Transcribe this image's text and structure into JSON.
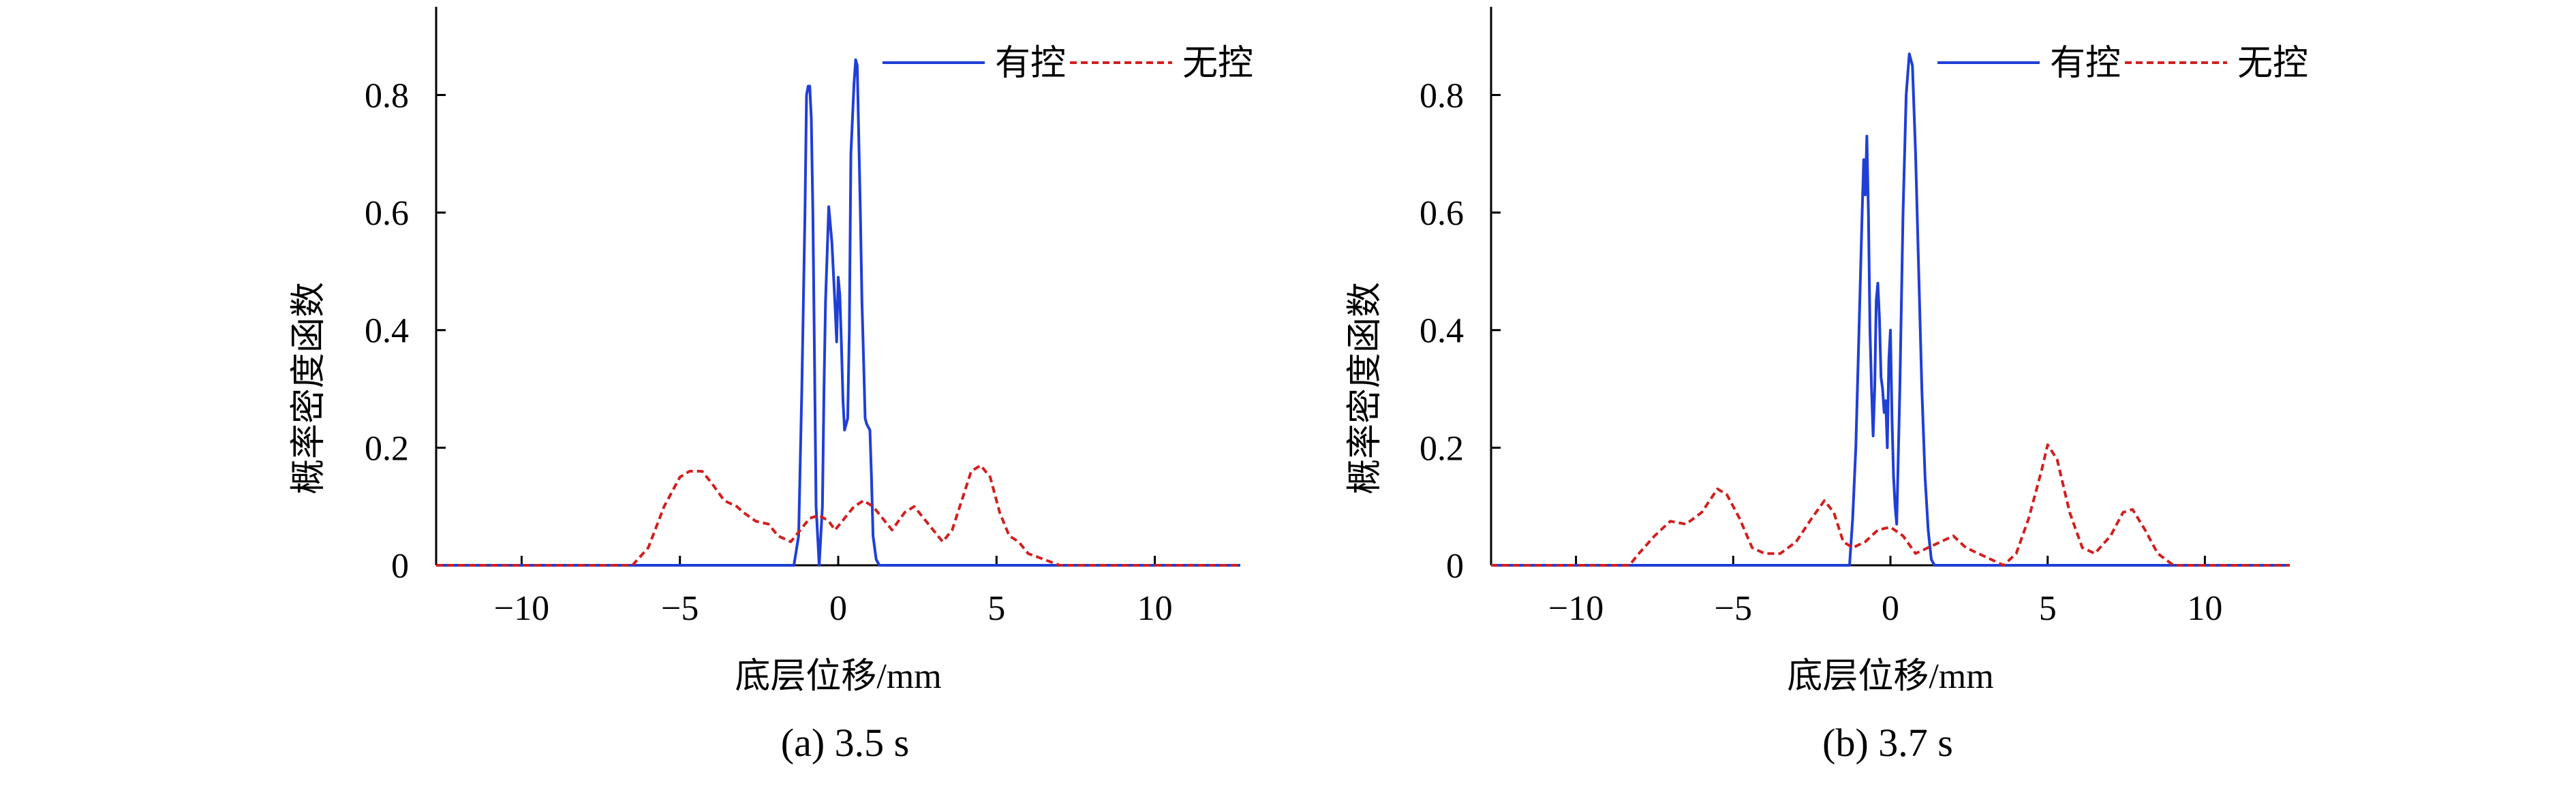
{
  "chart_data": [
    {
      "id": "a",
      "type": "line",
      "caption": "(a) 3.5 s",
      "xlabel": "底层位移/mm",
      "ylabel": "概率密度函数",
      "xlim": [
        -12.7,
        12.7
      ],
      "ylim": [
        0,
        0.95
      ],
      "xticks": [
        -10,
        -5,
        0,
        5,
        10
      ],
      "xtick_labels": [
        "−10",
        "−5",
        "0",
        "5",
        "10"
      ],
      "yticks": [
        0,
        0.2,
        0.4,
        0.6,
        0.8
      ],
      "ytick_labels": [
        "0",
        "0.2",
        "0.4",
        "0.6",
        "0.8"
      ],
      "legend": "top-right",
      "grid": false,
      "series": [
        {
          "name": "有控",
          "color": "#1f3fd6",
          "style": "solid",
          "x": [
            -12.7,
            -1.4,
            -1.25,
            -1.15,
            -1.05,
            -1.0,
            -0.95,
            -0.9,
            -0.85,
            -0.8,
            -0.75,
            -0.7,
            -0.6,
            -0.5,
            -0.45,
            -0.4,
            -0.3,
            -0.2,
            -0.1,
            -0.05,
            0.0,
            0.05,
            0.1,
            0.15,
            0.2,
            0.3,
            0.35,
            0.4,
            0.5,
            0.55,
            0.6,
            0.7,
            0.75,
            0.8,
            0.85,
            0.9,
            1.0,
            1.05,
            1.1,
            1.2,
            1.3,
            1.4,
            12.7
          ],
          "values": [
            0,
            0,
            0.05,
            0.3,
            0.6,
            0.8,
            0.815,
            0.815,
            0.76,
            0.6,
            0.35,
            0.1,
            0.0,
            0.1,
            0.3,
            0.45,
            0.61,
            0.55,
            0.44,
            0.38,
            0.49,
            0.46,
            0.38,
            0.28,
            0.23,
            0.25,
            0.4,
            0.7,
            0.82,
            0.86,
            0.85,
            0.6,
            0.45,
            0.35,
            0.25,
            0.24,
            0.23,
            0.15,
            0.05,
            0.01,
            0.0,
            0,
            0
          ]
        },
        {
          "name": "无控",
          "color": "#d21f1f",
          "style": "dashed",
          "x": [
            -12.7,
            -8,
            -6.5,
            -6,
            -5.5,
            -5,
            -4.7,
            -4.3,
            -4,
            -3.6,
            -3.2,
            -3,
            -2.6,
            -2.2,
            -1.9,
            -1.5,
            -1.2,
            -0.9,
            -0.6,
            -0.3,
            -0.1,
            0.2,
            0.5,
            0.8,
            1.1,
            1.4,
            1.7,
            2.1,
            2.4,
            2.7,
            3.0,
            3.3,
            3.6,
            3.9,
            4.2,
            4.5,
            4.8,
            5.1,
            5.4,
            5.7,
            6.0,
            6.5,
            7,
            12.7
          ],
          "values": [
            0,
            0,
            0.0,
            0.03,
            0.1,
            0.15,
            0.16,
            0.16,
            0.14,
            0.11,
            0.1,
            0.09,
            0.075,
            0.07,
            0.05,
            0.04,
            0.06,
            0.08,
            0.085,
            0.075,
            0.06,
            0.08,
            0.1,
            0.11,
            0.1,
            0.08,
            0.06,
            0.09,
            0.1,
            0.08,
            0.06,
            0.04,
            0.06,
            0.11,
            0.16,
            0.17,
            0.15,
            0.09,
            0.05,
            0.04,
            0.02,
            0.01,
            0,
            0
          ]
        }
      ]
    },
    {
      "id": "b",
      "type": "line",
      "caption": "(b) 3.7 s",
      "xlabel": "底层位移/mm",
      "ylabel": "概率密度函数",
      "xlim": [
        -12.7,
        12.7
      ],
      "ylim": [
        0,
        0.95
      ],
      "xticks": [
        -10,
        -5,
        0,
        5,
        10
      ],
      "xtick_labels": [
        "−10",
        "−5",
        "0",
        "5",
        "10"
      ],
      "yticks": [
        0,
        0.2,
        0.4,
        0.6,
        0.8
      ],
      "ytick_labels": [
        "0",
        "0.2",
        "0.4",
        "0.6",
        "0.8"
      ],
      "legend": "top-right",
      "grid": false,
      "series": [
        {
          "name": "有控",
          "color": "#1f3fd6",
          "style": "solid",
          "x": [
            -12.7,
            -1.3,
            -1.2,
            -1.1,
            -1.0,
            -0.9,
            -0.85,
            -0.8,
            -0.75,
            -0.7,
            -0.65,
            -0.6,
            -0.55,
            -0.5,
            -0.45,
            -0.4,
            -0.35,
            -0.3,
            -0.25,
            -0.2,
            -0.15,
            -0.1,
            -0.05,
            0.0,
            0.05,
            0.1,
            0.15,
            0.2,
            0.3,
            0.4,
            0.5,
            0.6,
            0.7,
            0.8,
            0.9,
            1.0,
            1.1,
            1.2,
            1.3,
            1.4,
            12.7
          ],
          "values": [
            0,
            0,
            0.08,
            0.2,
            0.4,
            0.6,
            0.69,
            0.63,
            0.73,
            0.6,
            0.4,
            0.3,
            0.22,
            0.3,
            0.45,
            0.48,
            0.42,
            0.32,
            0.3,
            0.26,
            0.28,
            0.2,
            0.35,
            0.4,
            0.25,
            0.15,
            0.1,
            0.07,
            0.3,
            0.6,
            0.8,
            0.87,
            0.85,
            0.7,
            0.5,
            0.3,
            0.15,
            0.06,
            0.01,
            0,
            0
          ]
        },
        {
          "name": "无控",
          "color": "#d21f1f",
          "style": "dashed",
          "x": [
            -12.7,
            -9.5,
            -8.3,
            -8,
            -7.5,
            -7,
            -6.5,
            -6,
            -5.5,
            -5.2,
            -4.8,
            -4.4,
            -4.0,
            -3.5,
            -3.0,
            -2.5,
            -2.1,
            -1.8,
            -1.5,
            -1.2,
            -0.8,
            -0.4,
            0.0,
            0.4,
            0.8,
            1.2,
            1.6,
            2.0,
            2.4,
            2.8,
            3.2,
            3.6,
            4.0,
            4.4,
            4.8,
            5.0,
            5.3,
            5.7,
            6.1,
            6.5,
            7.0,
            7.4,
            7.7,
            8.1,
            8.5,
            9.0,
            12.7
          ],
          "values": [
            0,
            0,
            0.0,
            0.02,
            0.05,
            0.075,
            0.07,
            0.09,
            0.13,
            0.12,
            0.08,
            0.03,
            0.02,
            0.02,
            0.04,
            0.08,
            0.11,
            0.09,
            0.04,
            0.03,
            0.04,
            0.06,
            0.065,
            0.05,
            0.02,
            0.03,
            0.04,
            0.05,
            0.03,
            0.02,
            0.01,
            0.0,
            0.02,
            0.08,
            0.16,
            0.205,
            0.18,
            0.09,
            0.03,
            0.02,
            0.05,
            0.09,
            0.095,
            0.06,
            0.02,
            0,
            0
          ]
        }
      ]
    }
  ]
}
